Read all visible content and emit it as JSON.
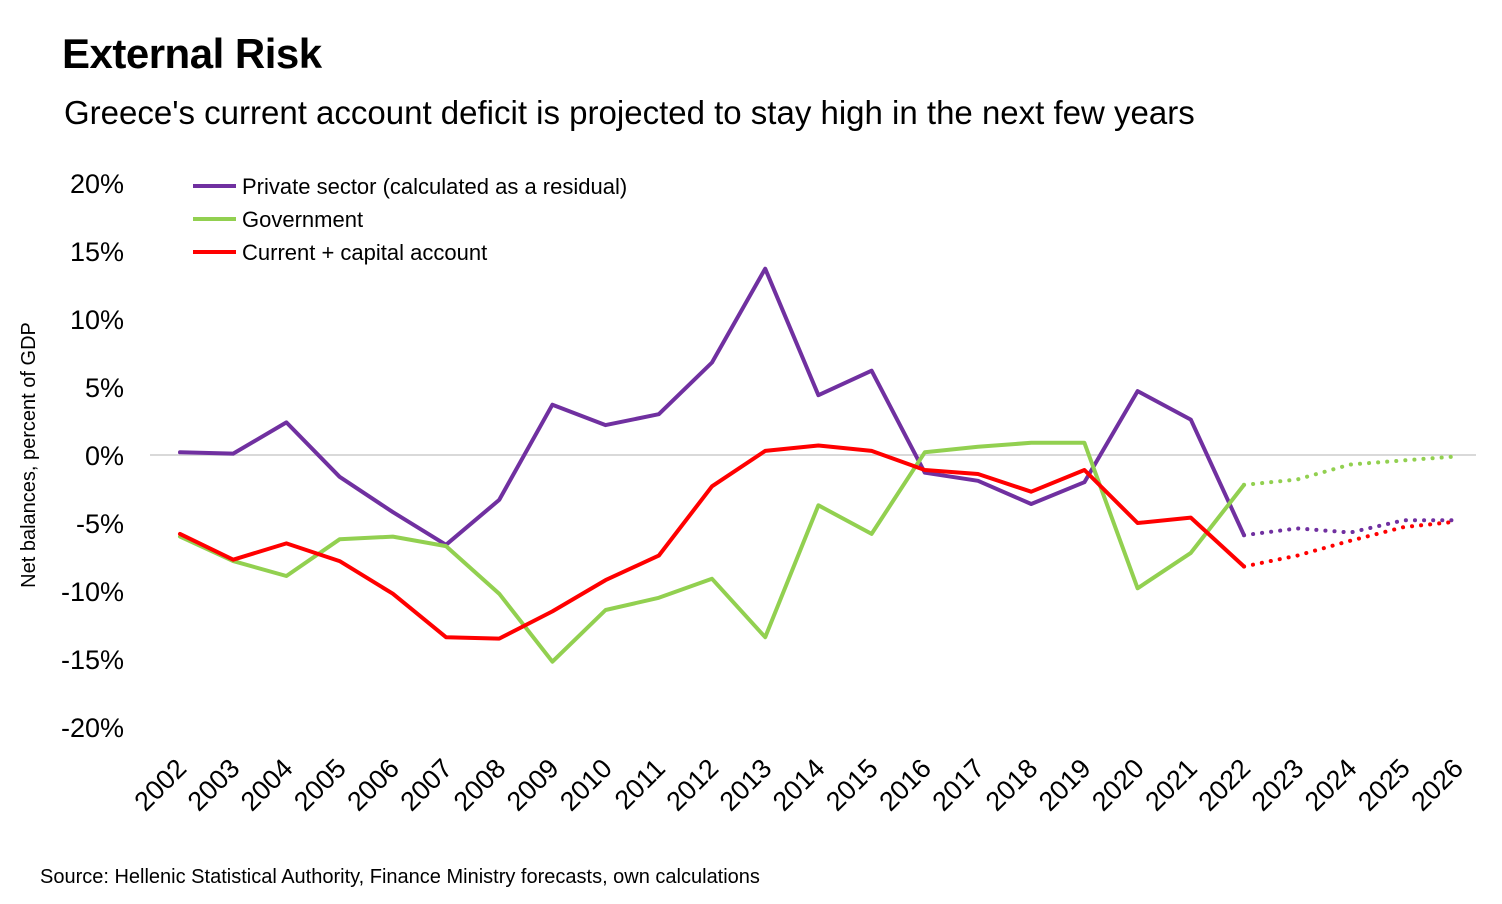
{
  "title": "External Risk",
  "subtitle": "Greece's current account deficit is projected to stay high in the next few years",
  "source": "Source: Hellenic Statistical Authority, Finance Ministry forecasts, own calculations",
  "chart_data": {
    "type": "line",
    "ylabel": "Net balances, percent of GDP",
    "xlabel": "",
    "ylim": [
      -20,
      20
    ],
    "yticks": [
      20,
      15,
      10,
      5,
      0,
      -5,
      -10,
      -15,
      -20
    ],
    "ytick_labels": [
      "20%",
      "15%",
      "10%",
      "5%",
      "0%",
      "-5%",
      "-10%",
      "-15%",
      "-20%"
    ],
    "x": [
      "2002",
      "2003",
      "2004",
      "2005",
      "2006",
      "2007",
      "2008",
      "2009",
      "2010",
      "2011",
      "2012",
      "2013",
      "2014",
      "2015",
      "2016",
      "2017",
      "2018",
      "2019",
      "2020",
      "2021",
      "2022",
      "2023",
      "2024",
      "2025",
      "2026"
    ],
    "legend_position": "top-left",
    "grid": false,
    "forecast_start": "2022",
    "series": [
      {
        "name": "Private sector (calculated as a residual)",
        "color": "#7030A0",
        "values": [
          0.2,
          0.1,
          2.4,
          -1.6,
          -4.2,
          -6.6,
          -3.3,
          3.7,
          2.2,
          3.0,
          6.8,
          13.7,
          4.4,
          6.2,
          -1.3,
          -1.9,
          -3.6,
          -2.0,
          4.7,
          2.6,
          -5.9,
          -5.4,
          -5.7,
          -4.8,
          -4.8
        ]
      },
      {
        "name": "Government",
        "color": "#92D050",
        "values": [
          -6.0,
          -7.8,
          -8.9,
          -6.2,
          -6.0,
          -6.7,
          -10.2,
          -15.2,
          -11.4,
          -10.5,
          -9.1,
          -13.4,
          -3.7,
          -5.8,
          0.2,
          0.6,
          0.9,
          0.9,
          -9.8,
          -7.2,
          -2.2,
          -1.8,
          -0.7,
          -0.4,
          -0.1
        ]
      },
      {
        "name": "Current + capital account",
        "color": "#FF0000",
        "values": [
          -5.8,
          -7.7,
          -6.5,
          -7.8,
          -10.2,
          -13.4,
          -13.5,
          -11.5,
          -9.2,
          -7.4,
          -2.3,
          0.3,
          0.7,
          0.3,
          -1.1,
          -1.4,
          -2.7,
          -1.1,
          -5.0,
          -4.6,
          -8.2,
          -7.4,
          -6.3,
          -5.3,
          -4.9
        ]
      }
    ]
  }
}
